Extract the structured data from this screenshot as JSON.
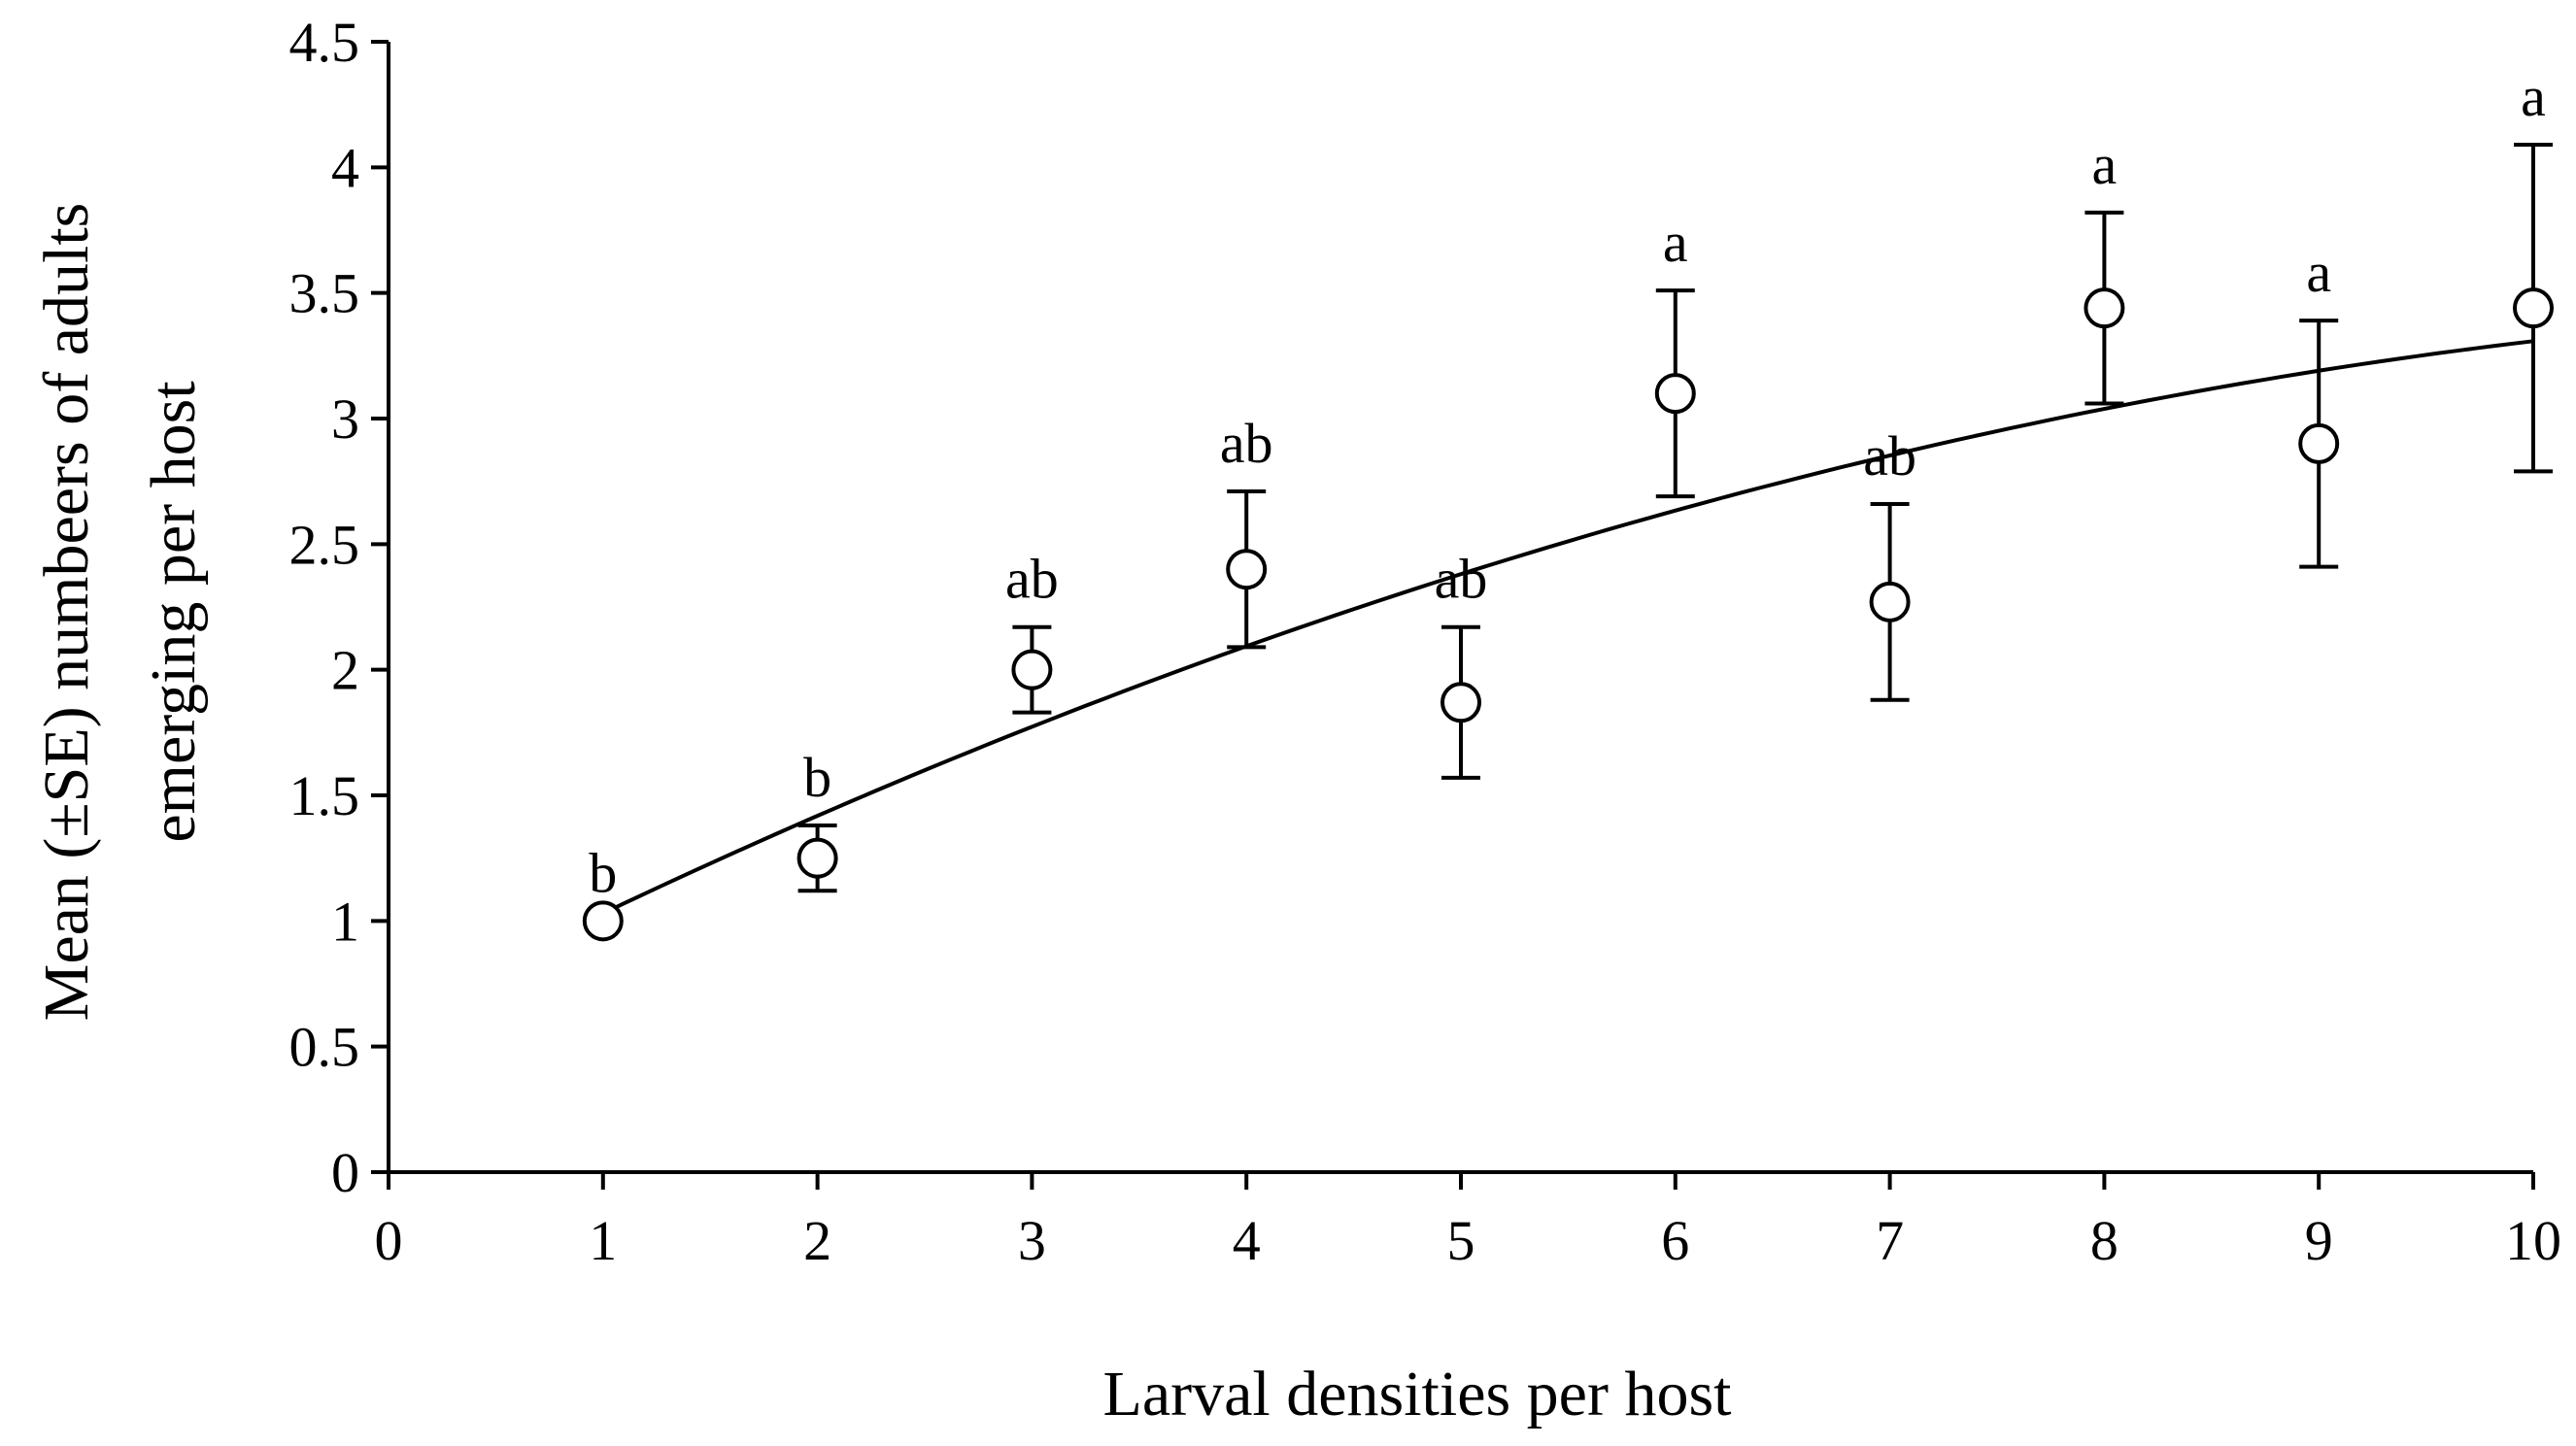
{
  "chart_data": {
    "type": "scatter",
    "xlabel": "Larval densities per host",
    "ylabel_line1": "Mean (±SE) numbeers of adults",
    "ylabel_line2": "emerging per host",
    "xlim": [
      0,
      10
    ],
    "ylim": [
      0,
      4.5
    ],
    "x_ticks": [
      "0",
      "1",
      "2",
      "3",
      "4",
      "5",
      "6",
      "7",
      "8",
      "9",
      "10"
    ],
    "y_ticks": [
      "0",
      "0.5",
      "1",
      "1.5",
      "2",
      "2.5",
      "3",
      "3.5",
      "4",
      "4.5"
    ],
    "grid": false,
    "legend": "none",
    "series": [
      {
        "marker": "open-circle",
        "x": [
          1,
          2,
          3,
          4,
          5,
          6,
          7,
          8,
          9,
          10
        ],
        "y": [
          1.0,
          1.25,
          2.0,
          2.4,
          1.87,
          3.1,
          2.27,
          3.44,
          2.9,
          3.44
        ],
        "se": [
          0.0,
          0.13,
          0.17,
          0.31,
          0.3,
          0.41,
          0.39,
          0.38,
          0.49,
          0.65
        ],
        "letters": [
          "b",
          "b",
          "ab",
          "ab",
          "ab",
          "a",
          "ab",
          "a",
          "a",
          "a"
        ]
      }
    ],
    "trendline": {
      "type": "quadratic",
      "x_range": [
        1,
        10
      ],
      "points": [
        [
          1,
          1.02
        ],
        [
          2,
          1.43
        ],
        [
          3,
          1.78
        ],
        [
          4,
          2.09
        ],
        [
          5,
          2.38
        ],
        [
          6,
          2.63
        ],
        [
          7,
          2.85
        ],
        [
          8,
          3.04
        ],
        [
          9,
          3.19
        ],
        [
          10,
          3.31
        ]
      ]
    }
  }
}
